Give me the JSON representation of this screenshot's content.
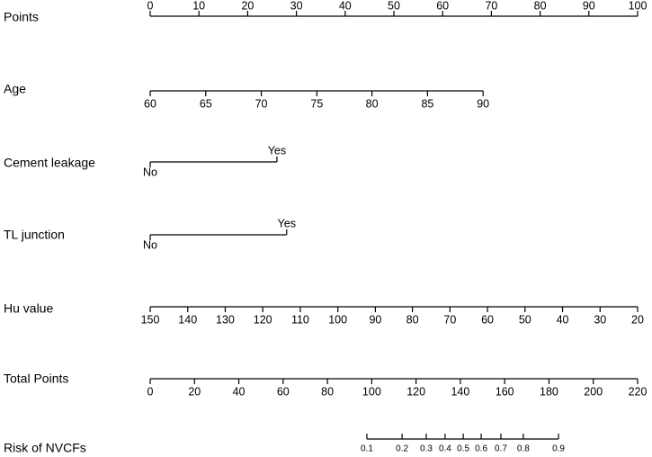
{
  "chart_data": {
    "type": "nomogram",
    "points_lim": [
      0,
      100
    ],
    "total_lim": [
      0,
      220
    ],
    "rows": [
      {
        "label": "Points",
        "axis": "points",
        "ticks": [
          0,
          10,
          20,
          30,
          40,
          50,
          60,
          70,
          80,
          90,
          100
        ]
      },
      {
        "label": "Age",
        "ticks": [
          60,
          65,
          70,
          75,
          80,
          85,
          90
        ],
        "points": [
          0,
          11.4,
          22.8,
          34.2,
          45.5,
          56.9,
          68.3
        ]
      },
      {
        "label": "Cement leakage",
        "ticks": [
          "No",
          "Yes"
        ],
        "points": [
          0,
          26
        ]
      },
      {
        "label": "TL junction",
        "ticks": [
          "No",
          "Yes"
        ],
        "points": [
          0,
          28
        ]
      },
      {
        "label": "Hu value",
        "ticks": [
          150,
          140,
          130,
          120,
          110,
          100,
          90,
          80,
          70,
          60,
          50,
          40,
          30,
          20
        ],
        "points": [
          0,
          7.7,
          15.4,
          23.1,
          30.8,
          38.5,
          46.2,
          53.8,
          61.5,
          69.2,
          76.9,
          84.6,
          92.3,
          100
        ]
      },
      {
        "label": "Total Points",
        "axis": "total",
        "ticks": [
          0,
          20,
          40,
          60,
          80,
          100,
          120,
          140,
          160,
          180,
          200,
          220
        ]
      },
      {
        "label": "Risk of NVCFs",
        "ticks": [
          0.1,
          0.2,
          0.3,
          0.4,
          0.5,
          0.6,
          0.7,
          0.8,
          0.9
        ],
        "total_points": [
          97.8,
          113.7,
          124.6,
          133.1,
          141.3,
          149.4,
          158.3,
          168.4,
          184.3
        ]
      }
    ]
  }
}
